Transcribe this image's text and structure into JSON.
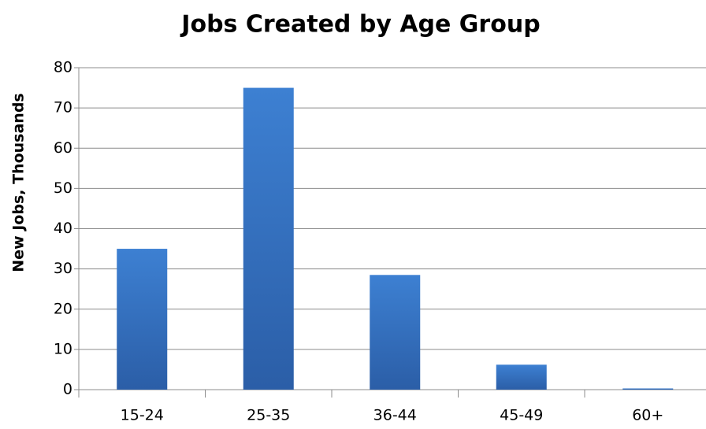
{
  "chart_data": {
    "type": "bar",
    "title": "Jobs Created by Age Group",
    "y_label": "New Jobs, Thousands",
    "categories": [
      "15-24",
      "25-35",
      "36-44",
      "45-49",
      "60+"
    ],
    "values": [
      35,
      75,
      28.5,
      6.2,
      0.3
    ],
    "color": "#3a7bcc",
    "ylim": [
      0,
      80
    ],
    "yticks": [
      0,
      10,
      20,
      30,
      40,
      50,
      60,
      70,
      80
    ],
    "grid": true
  }
}
